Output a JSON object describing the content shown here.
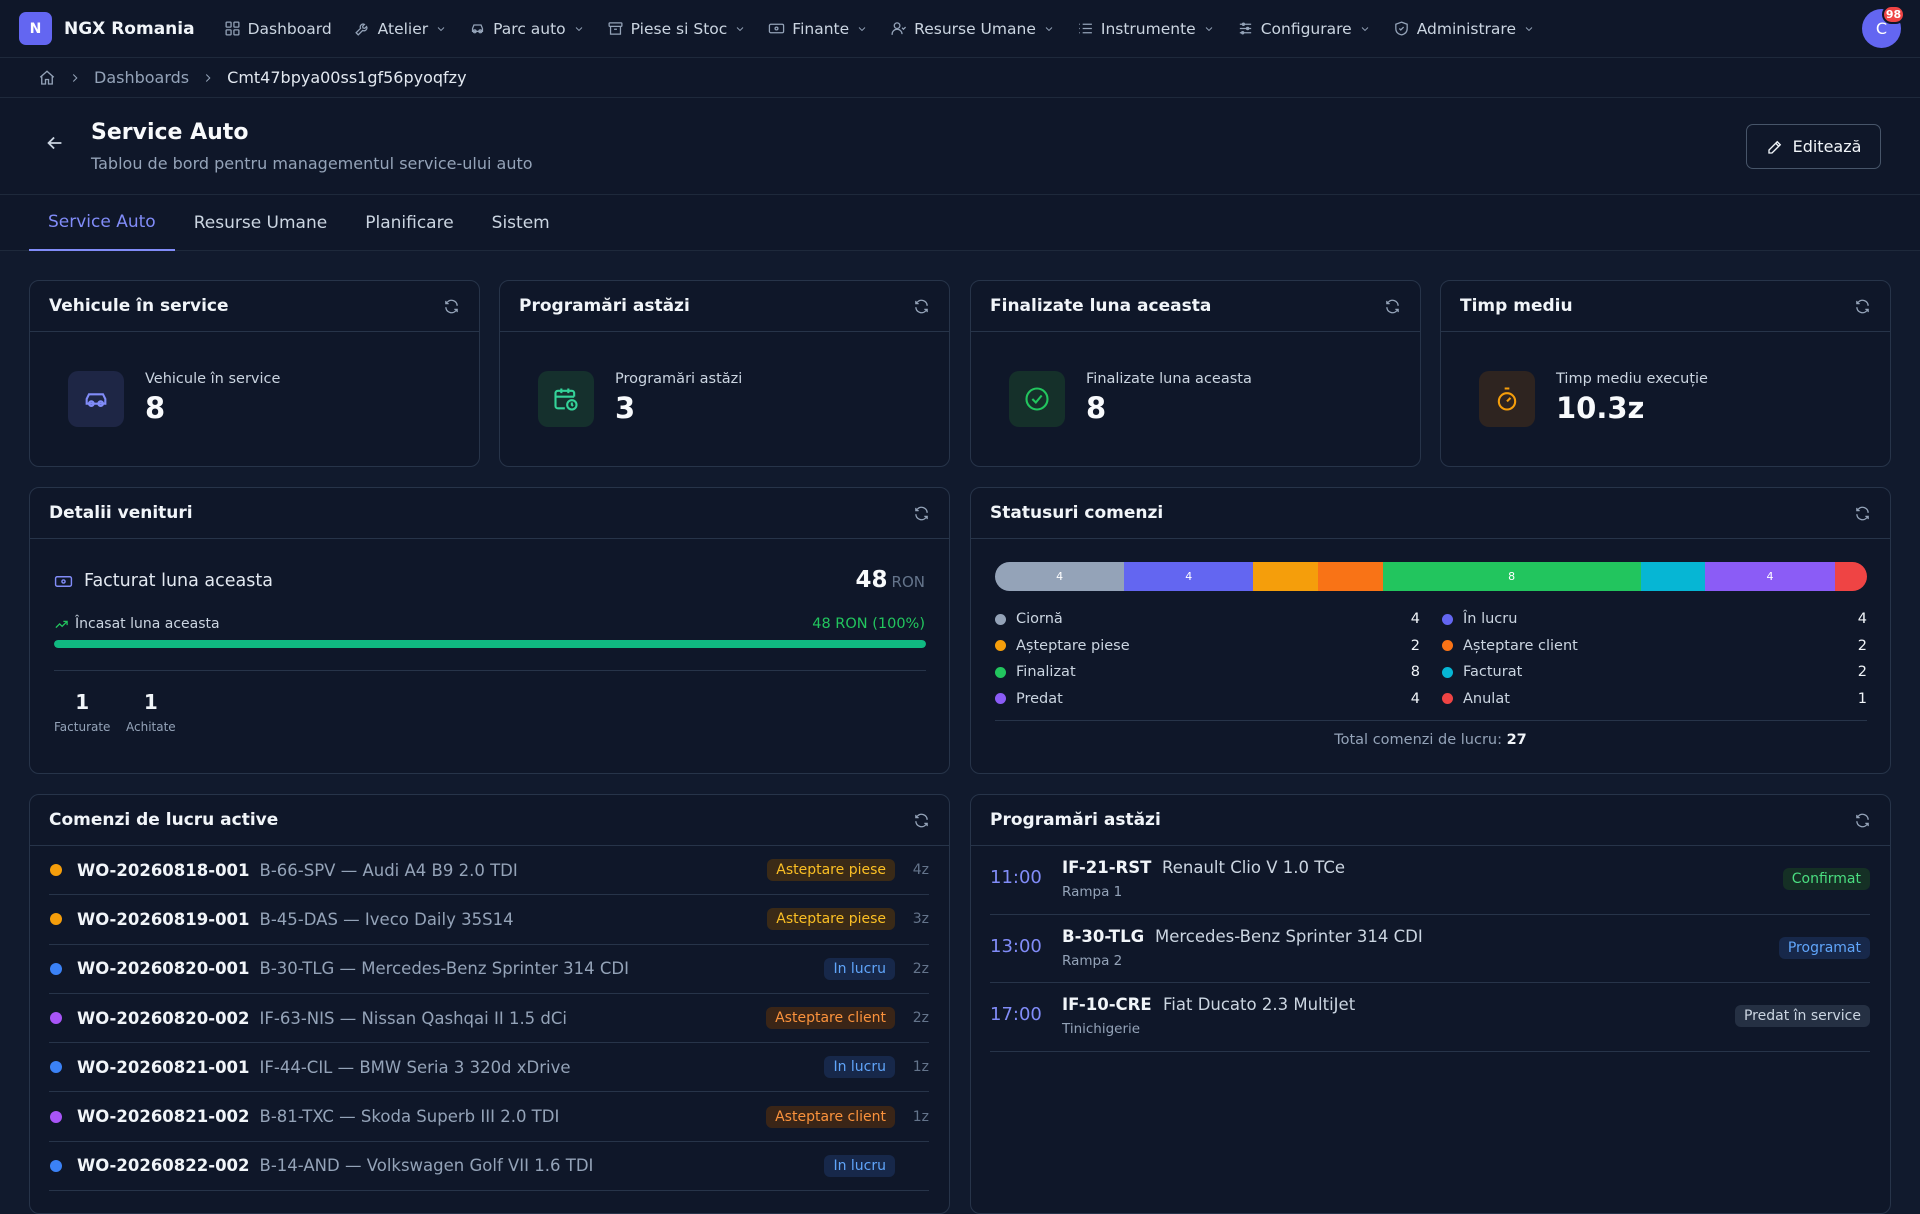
{
  "app": {
    "logo_letter": "N",
    "brand": "NGX Romania",
    "avatar": "C",
    "notifications": "98"
  },
  "nav": [
    {
      "label": "Dashboard",
      "icon": "grid-icon"
    },
    {
      "label": "Atelier",
      "icon": "wrench-icon"
    },
    {
      "label": "Parc auto",
      "icon": "car-icon"
    },
    {
      "label": "Piese si Stoc",
      "icon": "box-icon"
    },
    {
      "label": "Finante",
      "icon": "banknote-icon"
    },
    {
      "label": "Resurse Umane",
      "icon": "users-icon"
    },
    {
      "label": "Instrumente",
      "icon": "list-icon"
    },
    {
      "label": "Configurare",
      "icon": "sliders-icon"
    },
    {
      "label": "Administrare",
      "icon": "shield-icon"
    }
  ],
  "breadcrumb": {
    "parent": "Dashboards",
    "current": "Cmt47bpya00ss1gf56pyoqfzy"
  },
  "header": {
    "title": "Service Auto",
    "subtitle": "Tablou de bord pentru managementul service-ului auto",
    "edit_label": "Editează"
  },
  "tabs": [
    "Service Auto",
    "Resurse Umane",
    "Planificare",
    "Sistem"
  ],
  "stats": [
    {
      "title": "Vehicule în service",
      "label": "Vehicule în service",
      "value": "8",
      "icon": "car-icon",
      "color": "#818cf8",
      "bg": "#1e2645"
    },
    {
      "title": "Programări astăzi",
      "label": "Programări astăzi",
      "value": "3",
      "icon": "calendar-clock-icon",
      "color": "#34d399",
      "bg": "#15302d"
    },
    {
      "title": "Finalizate luna aceasta",
      "label": "Finalizate luna aceasta",
      "value": "8",
      "icon": "check-circle-icon",
      "color": "#22c55e",
      "bg": "#15302a"
    },
    {
      "title": "Timp mediu",
      "label": "Timp mediu execuție",
      "value": "10.3z",
      "icon": "timer-icon",
      "color": "#f59e0b",
      "bg": "#2e2420"
    }
  ],
  "revenue": {
    "title": "Detalii venituri",
    "invoiced_label": "Facturat luna aceasta",
    "invoiced_value": "48",
    "currency": "RON",
    "collected_label": "Încasat luna aceasta",
    "collected_value": "48 RON (100%)",
    "collected_fraction": 1.0,
    "invoices_count": "1",
    "invoices_label": "Facturate",
    "paid_count": "1",
    "paid_label": "Achitate"
  },
  "statuses": {
    "title": "Statusuri comenzi",
    "items": [
      {
        "name": "Ciornă",
        "value": 4,
        "color": "#94a3b8"
      },
      {
        "name": "În lucru",
        "value": 4,
        "color": "#6366f1"
      },
      {
        "name": "Așteptare piese",
        "value": 2,
        "color": "#f59e0b"
      },
      {
        "name": "Așteptare client",
        "value": 2,
        "color": "#f97316"
      },
      {
        "name": "Finalizat",
        "value": 8,
        "color": "#22c55e"
      },
      {
        "name": "Facturat",
        "value": 2,
        "color": "#06b6d4"
      },
      {
        "name": "Predat",
        "value": 4,
        "color": "#8b5cf6"
      },
      {
        "name": "Anulat",
        "value": 1,
        "color": "#ef4444"
      }
    ],
    "total_label": "Total comenzi de lucru:",
    "total": "27"
  },
  "work_orders": {
    "title": "Comenzi de lucru active",
    "rows": [
      {
        "id": "WO-20260818-001",
        "vehicle": "B-66-SPV — Audi A4 B9 2.0 TDI",
        "status": "Asteptare piese",
        "dot": "#f59e0b",
        "badge_fg": "#fbbf24",
        "badge_bg": "#3a2a17",
        "age": "4z"
      },
      {
        "id": "WO-20260819-001",
        "vehicle": "B-45-DAS — Iveco Daily 35S14",
        "status": "Asteptare piese",
        "dot": "#f59e0b",
        "badge_fg": "#fbbf24",
        "badge_bg": "#3a2a17",
        "age": "3z"
      },
      {
        "id": "WO-20260820-001",
        "vehicle": "B-30-TLG — Mercedes-Benz Sprinter 314 CDI",
        "status": "In lucru",
        "dot": "#3b82f6",
        "badge_fg": "#60a5fa",
        "badge_bg": "#17284a",
        "age": "2z"
      },
      {
        "id": "WO-20260820-002",
        "vehicle": "IF-63-NIS — Nissan Qashqai II 1.5 dCi",
        "status": "Asteptare client",
        "dot": "#a855f7",
        "badge_fg": "#fb923c",
        "badge_bg": "#3a2517",
        "age": "2z"
      },
      {
        "id": "WO-20260821-001",
        "vehicle": "IF-44-CIL — BMW Seria 3 320d xDrive",
        "status": "In lucru",
        "dot": "#3b82f6",
        "badge_fg": "#60a5fa",
        "badge_bg": "#17284a",
        "age": "1z"
      },
      {
        "id": "WO-20260821-002",
        "vehicle": "B-81-TXC — Skoda Superb III 2.0 TDI",
        "status": "Asteptare client",
        "dot": "#a855f7",
        "badge_fg": "#fb923c",
        "badge_bg": "#3a2517",
        "age": "1z"
      },
      {
        "id": "WO-20260822-002",
        "vehicle": "B-14-AND — Volkswagen Golf VII 1.6 TDI",
        "status": "In lucru",
        "dot": "#3b82f6",
        "badge_fg": "#60a5fa",
        "badge_bg": "#17284a",
        "age": ""
      }
    ]
  },
  "appointments": {
    "title": "Programări astăzi",
    "rows": [
      {
        "time": "11:00",
        "plate": "IF-21-RST",
        "vehicle": "Renault Clio V 1.0 TCe",
        "location": "Rampa 1",
        "status": "Confirmat",
        "badge_fg": "#4ade80",
        "badge_bg": "#153025"
      },
      {
        "time": "13:00",
        "plate": "B-30-TLG",
        "vehicle": "Mercedes-Benz Sprinter 314 CDI",
        "location": "Rampa 2",
        "status": "Programat",
        "badge_fg": "#60a5fa",
        "badge_bg": "#17284a"
      },
      {
        "time": "17:00",
        "plate": "IF-10-CRE",
        "vehicle": "Fiat Ducato 2.3 MultiJet",
        "location": "Tinichigerie",
        "status": "Predat în service",
        "badge_fg": "#cbd5e1",
        "badge_bg": "#253043"
      }
    ]
  }
}
